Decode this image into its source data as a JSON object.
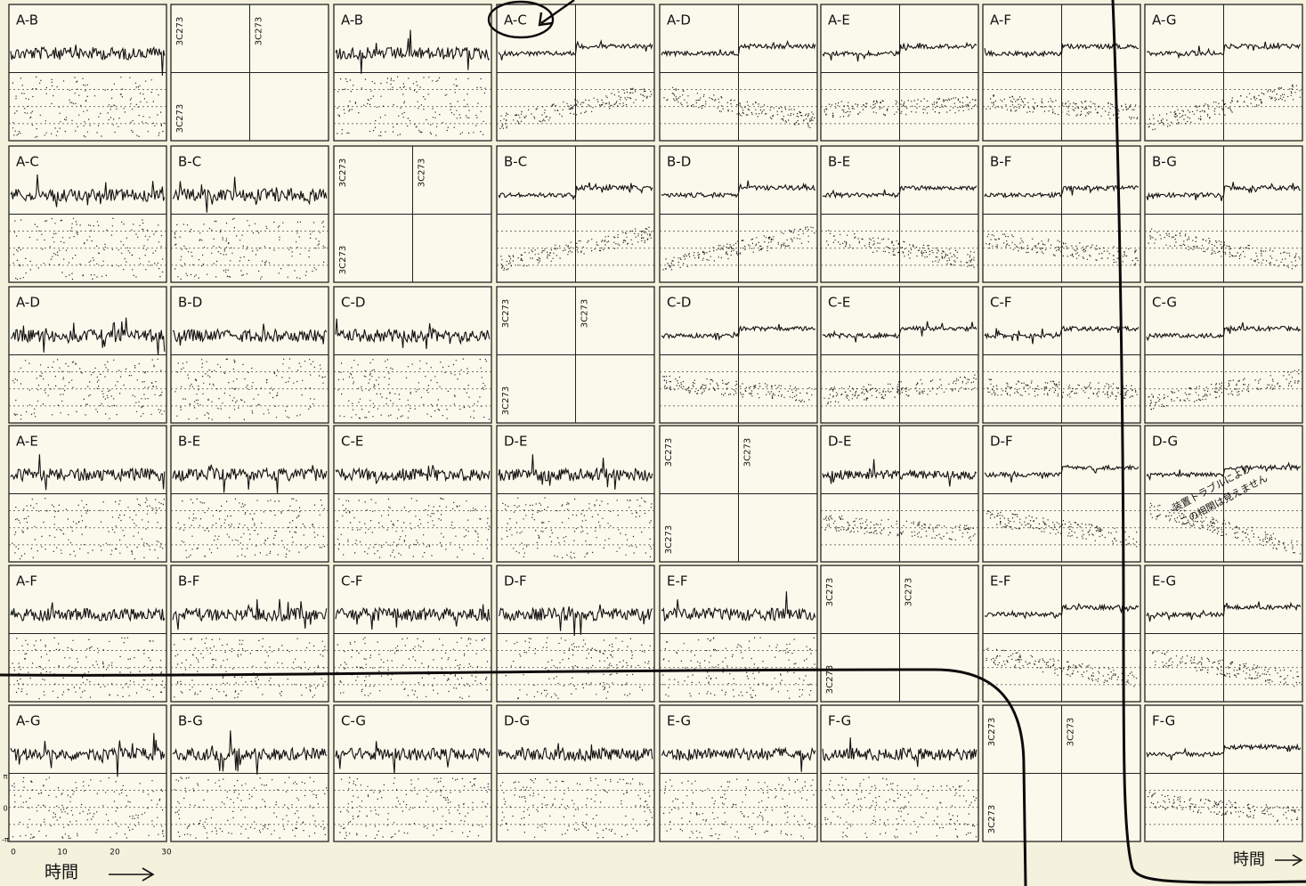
{
  "panels": [
    [
      "A-B",
      "3C273",
      "A-B",
      "A-C",
      "A-D",
      "A-E",
      "A-F",
      "A-G"
    ],
    [
      "A-C",
      "B-C",
      "3C273",
      "B-C",
      "B-D",
      "B-E",
      "B-F",
      "B-G"
    ],
    [
      "A-D",
      "B-D",
      "C-D",
      "3C273",
      "C-D",
      "C-E",
      "C-F",
      "C-G"
    ],
    [
      "A-E",
      "B-E",
      "C-E",
      "D-E",
      "3C273",
      "D-E",
      "D-F",
      "D-G"
    ],
    [
      "A-F",
      "B-F",
      "C-F",
      "D-F",
      "E-F",
      "3C273",
      "E-F",
      "E-G"
    ],
    [
      "A-G",
      "B-G",
      "C-G",
      "D-G",
      "E-G",
      "F-G",
      "3C273",
      "F-G"
    ]
  ],
  "x_axis": {
    "ticks": [
      0,
      10,
      20,
      30
    ],
    "label": "時間"
  },
  "y_axis": {
    "ticks": [
      "π",
      "0",
      "-π"
    ]
  },
  "note": [
    "装置トラブルにより",
    "この相関は見えません"
  ],
  "right_label": "時間"
}
